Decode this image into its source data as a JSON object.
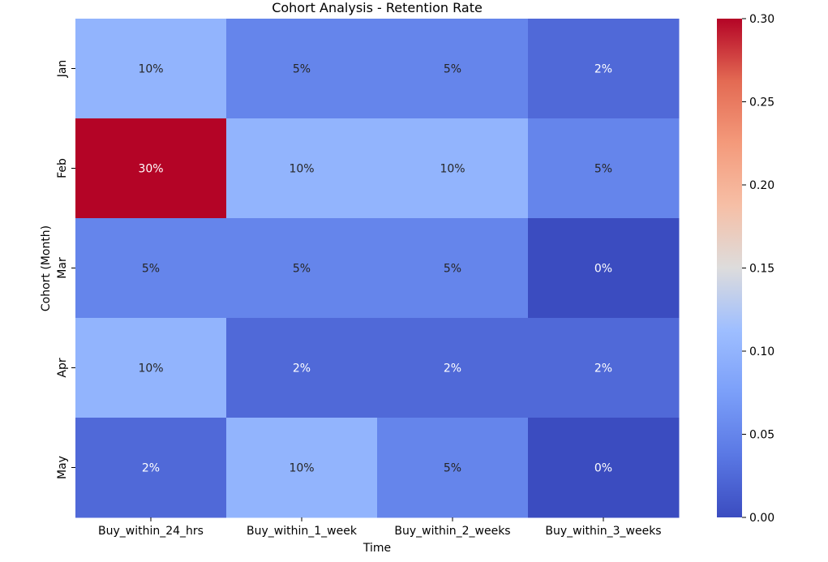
{
  "chart_data": {
    "type": "heatmap",
    "title": "Cohort Analysis - Retention Rate",
    "xlabel": "Time",
    "ylabel": "Cohort (Month)",
    "x_categories": [
      "Buy_within_24_hrs",
      "Buy_within_1_week",
      "Buy_within_2_weeks",
      "Buy_within_3_weeks"
    ],
    "y_categories": [
      "Jan",
      "Feb",
      "Mar",
      "Apr",
      "May"
    ],
    "values": [
      [
        0.1,
        0.05,
        0.05,
        0.025
      ],
      [
        0.3,
        0.1,
        0.1,
        0.05
      ],
      [
        0.05,
        0.05,
        0.05,
        0.0
      ],
      [
        0.1,
        0.025,
        0.025,
        0.025
      ],
      [
        0.025,
        0.1,
        0.05,
        0.0
      ]
    ],
    "labels": [
      [
        "10%",
        "5%",
        "5%",
        "2%"
      ],
      [
        "30%",
        "10%",
        "10%",
        "5%"
      ],
      [
        "5%",
        "5%",
        "5%",
        "0%"
      ],
      [
        "10%",
        "2%",
        "2%",
        "2%"
      ],
      [
        "2%",
        "10%",
        "5%",
        "0%"
      ]
    ],
    "colormap": "coolwarm",
    "vmin": 0.0,
    "vmax": 0.3,
    "colorbar_ticks": [
      "0.00",
      "0.05",
      "0.10",
      "0.15",
      "0.20",
      "0.25",
      "0.30"
    ],
    "grid": false,
    "legend": "colorbar-right"
  }
}
